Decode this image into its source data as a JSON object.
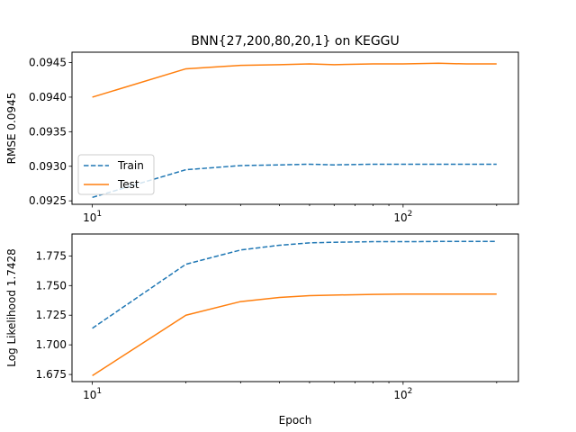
{
  "title": "BNN{27,200,80,20,1} on KEGGU",
  "xlabel": "Epoch",
  "x_tick_labels": [
    "10",
    "10"
  ],
  "x_tick_sup": [
    "1",
    "2"
  ],
  "colors": {
    "train": "#1f77b4",
    "test": "#ff7f0e"
  },
  "chart_data": [
    {
      "type": "line",
      "xscale": "log",
      "xlim": [
        8.6,
        235
      ],
      "ylim": [
        0.09245,
        0.09465
      ],
      "ylabel": "RMSE 0.0945",
      "yticks": [
        0.0925,
        0.093,
        0.0935,
        0.094,
        0.0945
      ],
      "ytick_labels": [
        "0.0925",
        "0.0930",
        "0.0935",
        "0.0940",
        "0.0945"
      ],
      "legend": {
        "placement": "lower-left",
        "entries": [
          "Train",
          "Test"
        ]
      },
      "x": [
        10,
        20,
        30,
        40,
        50,
        60,
        80,
        100,
        130,
        160,
        200
      ],
      "series": [
        {
          "name": "Train",
          "style": "dashed",
          "values": [
            0.09255,
            0.09295,
            0.09301,
            0.09302,
            0.09303,
            0.09302,
            0.09303,
            0.09303,
            0.09303,
            0.09303,
            0.09303
          ]
        },
        {
          "name": "Test",
          "style": "solid",
          "values": [
            0.094,
            0.09441,
            0.09446,
            0.09447,
            0.09448,
            0.09447,
            0.09448,
            0.09448,
            0.09449,
            0.09448,
            0.09448
          ]
        }
      ]
    },
    {
      "type": "line",
      "xscale": "log",
      "xlim": [
        8.6,
        235
      ],
      "ylim": [
        1.669,
        1.7935
      ],
      "ylabel": "Log Likelihood 1.7428",
      "yticks": [
        1.675,
        1.7,
        1.725,
        1.75,
        1.775
      ],
      "ytick_labels": [
        "1.675",
        "1.700",
        "1.725",
        "1.750",
        "1.775"
      ],
      "x": [
        10,
        20,
        30,
        40,
        50,
        60,
        80,
        100,
        130,
        160,
        200
      ],
      "series": [
        {
          "name": "Train",
          "style": "dashed",
          "values": [
            1.714,
            1.768,
            1.78,
            1.784,
            1.786,
            1.7865,
            1.787,
            1.787,
            1.7872,
            1.7872,
            1.7872
          ]
        },
        {
          "name": "Test",
          "style": "solid",
          "values": [
            1.674,
            1.725,
            1.7365,
            1.74,
            1.7415,
            1.742,
            1.7425,
            1.7428,
            1.7428,
            1.7428,
            1.7428
          ]
        }
      ]
    }
  ]
}
